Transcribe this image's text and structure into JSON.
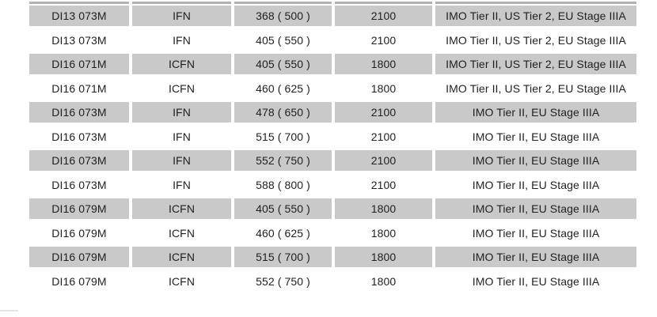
{
  "colors": {
    "page_bg": "#ffffff",
    "row_alt": "#c9c9c9",
    "header_sliver": "#b2b2b2",
    "text": "#1f1f1f",
    "corner_mark": "#e3e3e3"
  },
  "table": {
    "rows": [
      {
        "model": "DI13 073M",
        "type": "IFN",
        "output": "368 ( 500 )",
        "rpm": "2100",
        "emissions": "IMO Tier II, US Tier 2, EU Stage IIIA"
      },
      {
        "model": "DI13 073M",
        "type": "IFN",
        "output": "405 ( 550 )",
        "rpm": "2100",
        "emissions": "IMO Tier II, US Tier 2, EU Stage IIIA"
      },
      {
        "model": "DI16 071M",
        "type": "ICFN",
        "output": "405 ( 550 )",
        "rpm": "1800",
        "emissions": "IMO Tier II, US Tier 2, EU Stage IIIA"
      },
      {
        "model": "DI16 071M",
        "type": "ICFN",
        "output": "460 ( 625 )",
        "rpm": "1800",
        "emissions": "IMO Tier II, US Tier 2, EU Stage IIIA"
      },
      {
        "model": "DI16 073M",
        "type": "IFN",
        "output": "478 ( 650 )",
        "rpm": "2100",
        "emissions": "IMO Tier II, EU Stage IIIA"
      },
      {
        "model": "DI16 073M",
        "type": "IFN",
        "output": "515 ( 700 )",
        "rpm": "2100",
        "emissions": "IMO Tier II, EU Stage IIIA"
      },
      {
        "model": "DI16 073M",
        "type": "IFN",
        "output": "552 ( 750 )",
        "rpm": "2100",
        "emissions": "IMO Tier II, EU Stage IIIA"
      },
      {
        "model": "DI16 073M",
        "type": "IFN",
        "output": "588 ( 800 )",
        "rpm": "2100",
        "emissions": "IMO Tier II, EU Stage IIIA"
      },
      {
        "model": "DI16 079M",
        "type": "ICFN",
        "output": "405 ( 550 )",
        "rpm": "1800",
        "emissions": "IMO Tier II, EU Stage IIIA"
      },
      {
        "model": "DI16 079M",
        "type": "ICFN",
        "output": "460 ( 625 )",
        "rpm": "1800",
        "emissions": "IMO Tier II, EU Stage IIIA"
      },
      {
        "model": "DI16 079M",
        "type": "ICFN",
        "output": "515 ( 700 )",
        "rpm": "1800",
        "emissions": "IMO Tier II, EU Stage IIIA"
      },
      {
        "model": "DI16 079M",
        "type": "ICFN",
        "output": "552 ( 750 )",
        "rpm": "1800",
        "emissions": "IMO Tier II, EU Stage IIIA"
      }
    ]
  }
}
